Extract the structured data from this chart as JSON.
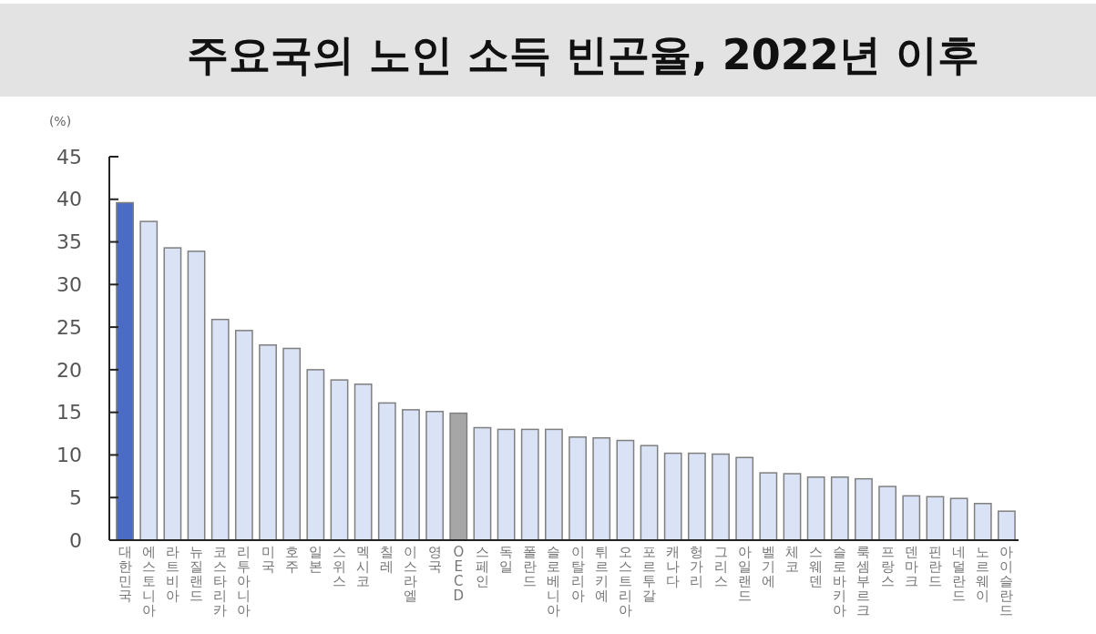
{
  "chart_data": {
    "type": "bar",
    "title": "주요국의 노인 소득 빈곤율, 2022년 이후",
    "ylabel": "(%)",
    "categories": [
      "대한민국",
      "에스토니아",
      "라트비아",
      "뉴질랜드",
      "코스타리카",
      "리투아니아",
      "미국",
      "호주",
      "일본",
      "스위스",
      "멕시코",
      "칠레",
      "이스라엘",
      "영국",
      "OECD",
      "스페인",
      "독일",
      "폴란드",
      "슬로베니아",
      "이탈리아",
      "튀르키예",
      "오스트리아",
      "포르투갈",
      "캐나다",
      "헝가리",
      "그리스",
      "아일랜드",
      "벨기에",
      "체코",
      "스웨덴",
      "슬로바키아",
      "룩셈부르크",
      "프랑스",
      "덴마크",
      "핀란드",
      "네덜란드",
      "노르웨이",
      "아이슬란드"
    ],
    "values": [
      39.6,
      37.4,
      34.3,
      33.9,
      25.9,
      24.6,
      22.9,
      22.5,
      20.0,
      18.8,
      18.3,
      16.1,
      15.3,
      15.1,
      14.9,
      13.2,
      13.0,
      13.0,
      13.0,
      12.1,
      12.0,
      11.7,
      11.1,
      10.2,
      10.2,
      10.1,
      9.7,
      7.9,
      7.8,
      7.4,
      7.4,
      7.2,
      6.3,
      5.2,
      5.1,
      4.9,
      4.3,
      3.4
    ],
    "colors": [
      "#4a6cc4",
      "#dae3f6",
      "#dae3f6",
      "#dae3f6",
      "#dae3f6",
      "#dae3f6",
      "#dae3f6",
      "#dae3f6",
      "#dae3f6",
      "#dae3f6",
      "#dae3f6",
      "#dae3f6",
      "#dae3f6",
      "#dae3f6",
      "#a6a6a6",
      "#dae3f6",
      "#dae3f6",
      "#dae3f6",
      "#dae3f6",
      "#dae3f6",
      "#dae3f6",
      "#dae3f6",
      "#dae3f6",
      "#dae3f6",
      "#dae3f6",
      "#dae3f6",
      "#dae3f6",
      "#dae3f6",
      "#dae3f6",
      "#dae3f6",
      "#dae3f6",
      "#dae3f6",
      "#dae3f6",
      "#dae3f6",
      "#dae3f6",
      "#dae3f6",
      "#dae3f6",
      "#dae3f6"
    ],
    "ylim": [
      0,
      45
    ],
    "yticks": [
      0,
      5,
      10,
      15,
      20,
      25,
      30,
      35,
      40,
      45
    ]
  }
}
